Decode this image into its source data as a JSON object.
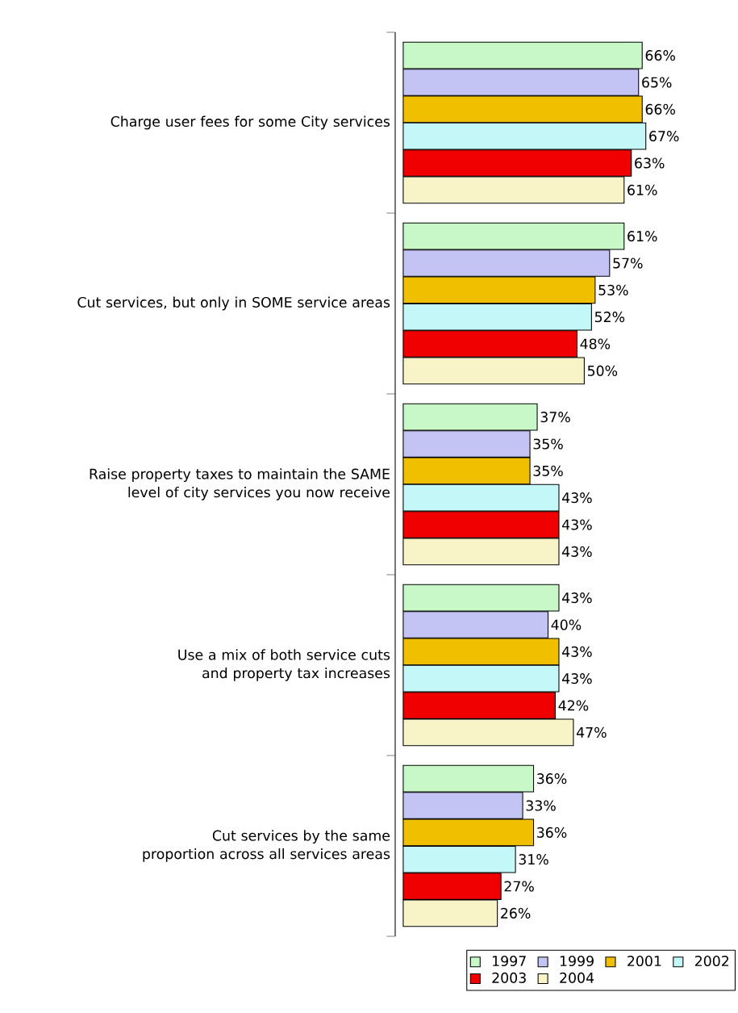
{
  "chart_data": {
    "type": "bar",
    "orientation": "horizontal",
    "legend": "bottom right",
    "categories": [
      "Charge user fees for some City services",
      "Cut services, but only in SOME service areas",
      "Raise property taxes to maintain the SAME level of city services you now receive",
      "Use a mix of both service cuts and property tax increases",
      "Cut services by the same proportion across all services areas"
    ],
    "series": [
      {
        "name": "1997",
        "color": "#c8f8c8",
        "values": [
          66,
          61,
          37,
          43,
          36
        ],
        "value_labels": [
          "66%",
          "61%",
          "37%",
          "43%",
          "36%"
        ]
      },
      {
        "name": "1999",
        "color": "#c4c4f4",
        "values": [
          65,
          57,
          35,
          40,
          33
        ],
        "value_labels": [
          "65%",
          "57%",
          "35%",
          "40%",
          "33%"
        ]
      },
      {
        "name": "2001",
        "color": "#f0c000",
        "values": [
          66,
          53,
          35,
          43,
          36
        ],
        "value_labels": [
          "66%",
          "53%",
          "35%",
          "43%",
          "36%"
        ]
      },
      {
        "name": "2002",
        "color": "#c4f8f8",
        "values": [
          67,
          52,
          43,
          43,
          31
        ],
        "value_labels": [
          "67%",
          "52%",
          "43%",
          "43%",
          "31%"
        ]
      },
      {
        "name": "2003",
        "color": "#f00000",
        "values": [
          63,
          48,
          43,
          42,
          27
        ],
        "value_labels": [
          "63%",
          "48%",
          "43%",
          "42%",
          "27%"
        ]
      },
      {
        "name": "2004",
        "color": "#f8f4c8",
        "values": [
          61,
          50,
          43,
          47,
          26
        ],
        "value_labels": [
          "61%",
          "50%",
          "43%",
          "47%",
          "26%"
        ]
      }
    ]
  }
}
